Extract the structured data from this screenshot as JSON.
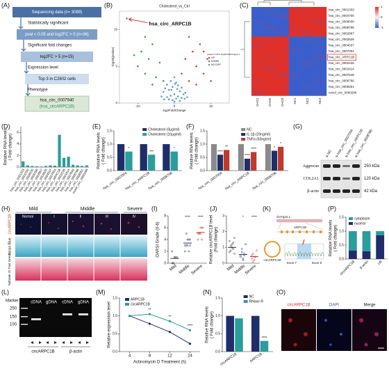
{
  "flowchart": {
    "label": "(A)",
    "steps": [
      "Sequencing data (n= 3089)",
      "pval < 0.05 and log2FC > 0 (n=36)",
      "log2FC > 5  (n=15)",
      "Top 3 in C28/I2 cells",
      "hsa_circ_0007940"
    ],
    "final_alias": "(hsa_circARPC1B)",
    "criteria": [
      "Statistically significant",
      "Significant fold changes",
      "Expression level",
      "Phenotype"
    ]
  },
  "western_blot": {
    "label": "(G)",
    "lanes": [
      "si NC",
      "si hsa_circ_0007004",
      "si hsa_circ_ARPC1B",
      "si hsa_circ_0008796"
    ],
    "proteins": [
      "Aggrecan",
      "COL2A1",
      "β-actin"
    ],
    "sizes": [
      "250 kDa",
      "120 kDa",
      "42 kDa"
    ]
  },
  "histology": {
    "label": "(H)",
    "groups": [
      "Mild",
      "Middle",
      "Severe"
    ],
    "grades": [
      "Normal",
      "I",
      "II",
      "III",
      "IV"
    ],
    "stains": [
      "CircARPC1B",
      "Alcian Blue",
      "Safranin O/ Fast Green"
    ]
  },
  "sequencing": {
    "label": "(K)",
    "texts": [
      "chr7q22.1",
      "ARPC1B",
      "Exon 7",
      "Exon 8",
      "circARPC1B"
    ]
  },
  "gel": {
    "label": "(L)",
    "marker": "Marker",
    "lanes": [
      "cDNA",
      "gDNA",
      "cDNA",
      "gDNA"
    ],
    "ladder": [
      "250",
      "150",
      "100"
    ],
    "targets": [
      "circARPC1B",
      "β-actin"
    ]
  },
  "fluorescence": {
    "label": "(O)",
    "channels": [
      "circARPC1B",
      "DAPI",
      "Merge"
    ]
  },
  "chart_data": [
    {
      "type": "scatter",
      "label": "(B)",
      "title": "Cholesterol_vs_Ctrl",
      "annotation": "hsa_circ_ARPC1B",
      "xlabel": "log2FoldChange",
      "ylabel": [
        "-log10(pvalue)"
      ],
      "xlim": [
        -15,
        15
      ],
      "ylim": [
        0,
        12.5
      ],
      "xticks": [
        -10,
        0,
        10
      ],
      "yticks": [
        0,
        5,
        10
      ],
      "legend_title": "pvalue<0.05 & |log2FoldChange|>1",
      "series": [
        {
          "name": "UP",
          "color": "#e0403a",
          "x": [
            2,
            3,
            4,
            5,
            6,
            7,
            8,
            9,
            10,
            4,
            6,
            8
          ],
          "y": [
            4,
            6,
            3,
            7,
            5,
            8,
            4,
            6,
            3,
            9,
            2.5,
            7
          ]
        },
        {
          "name": "DOWN",
          "color": "#2fa84f",
          "x": [
            -13,
            -10,
            -9,
            -8,
            -7,
            -6,
            -5,
            -4,
            -3,
            -11,
            -8,
            -6
          ],
          "y": [
            11.5,
            5,
            7,
            4,
            6,
            8,
            3.5,
            5.5,
            3,
            6.5,
            9,
            2.5
          ]
        },
        {
          "name": "NO DIFF",
          "color": "#5b9bd5",
          "x": [
            -3,
            -2.5,
            -2,
            -1.5,
            -1,
            -0.5,
            0,
            0.5,
            1,
            1.5,
            2,
            2.5,
            3,
            -2,
            -1,
            0,
            1,
            2,
            -1.5,
            -0.5,
            0.5,
            1.5,
            -0.8,
            0.8,
            0,
            -3.5,
            3.5,
            -2.8,
            2.8,
            0.2
          ],
          "y": [
            1.5,
            2,
            2.5,
            1.8,
            3,
            2.2,
            3.5,
            2.8,
            2.4,
            1.6,
            2.1,
            1.2,
            1.4,
            0.8,
            1,
            1.2,
            0.9,
            0.7,
            0.5,
            0.4,
            0.6,
            0.3,
            1.8,
            1.9,
            0.2,
            0.9,
            0.8,
            0.5,
            0.6,
            2.6
          ]
        }
      ]
    },
    {
      "type": "heatmap",
      "label": "(C)",
      "rows": [
        "hsa_circ_0001333",
        "hsa_circ_0004700",
        "hsa_circ_0008030",
        "hsa_circ_0008796",
        "hsa_circ_0002867",
        "hsa_circ_0002626",
        "hsa_circ_0004037",
        "hsa_circ_0007004",
        "hsa_circ_ARPC1B",
        "hsa_circ_0002226",
        "hsa_circ_0001614",
        "hsa_circ_0007648",
        "hsa_circ_0008796",
        "hsa_circ_0008261",
        "novel_circ_0000296"
      ],
      "columns": [
        "CHO1",
        "CHO2",
        "CHO3",
        "NC1",
        "NC2",
        "NC3"
      ],
      "highlight_row": 8,
      "colorbar_ticks": [
        1,
        0,
        -1
      ],
      "values": [
        [
          -1,
          -0.9,
          -1,
          0.9,
          1,
          1
        ],
        [
          -1,
          -1,
          -0.8,
          1,
          0.9,
          1
        ],
        [
          -0.9,
          -1,
          -1,
          1,
          1,
          0.8
        ],
        [
          -1,
          -0.8,
          -1,
          0.9,
          1,
          1
        ],
        [
          -1,
          -1,
          -0.9,
          1,
          0.8,
          1
        ],
        [
          1,
          0.9,
          1,
          -1,
          -0.9,
          -1
        ],
        [
          0.8,
          1,
          1,
          -1,
          -1,
          -0.9
        ],
        [
          1,
          1,
          0.9,
          -0.9,
          -1,
          -1
        ],
        [
          1,
          0.9,
          1,
          -1,
          -1,
          -0.8
        ],
        [
          0.9,
          1,
          1,
          -1,
          -0.8,
          -1
        ],
        [
          1,
          0.8,
          1,
          -1,
          -1,
          -1
        ],
        [
          1,
          1,
          0.8,
          -0.9,
          -1,
          -1
        ],
        [
          0.9,
          1,
          1,
          -1,
          -1,
          -0.9
        ],
        [
          1,
          1,
          0.9,
          -1,
          -0.9,
          -1
        ],
        [
          0.8,
          1,
          1,
          -1,
          -1,
          -0.9
        ]
      ]
    },
    {
      "type": "bar",
      "label": "(D)",
      "ylabel": [
        "Relative RNA levels",
        "( Fold change)"
      ],
      "color": "#2a9d9d",
      "categories": [
        "hsa_circ_0001333",
        "hsa_circ_0004700",
        "hsa_circ_0008030",
        "hsa_circ_0008796",
        "hsa_circ_0002867",
        "hsa_circ_0002626",
        "hsa_circ_0004037",
        "hsa_circ_0007004",
        "hsa_circ_ARPC1B",
        "hsa_circ_0002226",
        "hsa_circ_0001614",
        "hsa_circ_0007648",
        "hsa_circ_0008796",
        "hsa_circ_0008261",
        "novel_circ_0000296"
      ],
      "values": [
        1.0,
        0.3,
        0.2,
        0.15,
        0.1,
        0.2,
        0.3,
        0.25,
        5.6,
        1.6,
        1.8,
        0.4,
        0.3,
        0.2,
        0.3
      ],
      "ylim": [
        0,
        7
      ],
      "yticks": [
        0,
        2,
        4,
        6
      ]
    },
    {
      "type": "grouped",
      "label": "(E)",
      "ylabel": [
        "Relative RNA levels",
        "( Fold change)"
      ],
      "categories": [
        "hsa_circ_0007004",
        "hsa_circ_ARPC1B",
        "hsa_circ_0008796"
      ],
      "series": [
        {
          "name": "Cholesterol (0μg/ml)",
          "color": "#1f2d6b",
          "values": [
            1.0,
            1.0,
            1.0
          ],
          "significance": [
            null,
            null,
            null
          ]
        },
        {
          "name": "Cholesterol (10μg/ml)",
          "color": "#2a9d9d",
          "values": [
            0.72,
            0.6,
            0.72
          ],
          "significance": [
            "*",
            "***",
            "*"
          ]
        }
      ],
      "ylim": [
        0,
        1.5
      ],
      "yticks": [
        {
          "value": 0,
          "label": "0.0"
        },
        {
          "value": 0.5,
          "label": "0.5"
        },
        {
          "value": 1,
          "label": "1.0"
        },
        {
          "value": 1.5,
          "label": "1.5"
        }
      ]
    },
    {
      "type": "grouped",
      "label": "(F)",
      "ylabel": [
        "Relative RNA levels",
        "( Fold change)"
      ],
      "categories": [
        "hsa_circ_0007004",
        "hsa_circ_ARPC1B",
        "hsa_circ_0008796"
      ],
      "series": [
        {
          "name": "NC",
          "color": "#8a8a8a",
          "values": [
            1.0,
            1.0,
            1.0
          ],
          "significance": [
            null,
            null,
            null
          ]
        },
        {
          "name": "IL-1β (20ng/ml)",
          "color": "#1f2d6b",
          "values": [
            0.6,
            0.45,
            0.75
          ],
          "significance": [
            "****",
            "****",
            "*"
          ]
        },
        {
          "name": "TNFα (50ng/ml)",
          "color": "#c0392b",
          "values": [
            0.78,
            0.7,
            0.9
          ],
          "significance": [
            "**",
            "****",
            "*"
          ]
        }
      ],
      "ylim": [
        0,
        1.5
      ],
      "yticks": [
        {
          "value": 0,
          "label": "0.0"
        },
        {
          "value": 0.5,
          "label": "0.5"
        },
        {
          "value": 1,
          "label": "1.0"
        },
        {
          "value": 1.5,
          "label": "1.5"
        }
      ]
    },
    {
      "type": "dot",
      "label": "(I)",
      "ylabel": [
        "OARSI Grade (0-6)"
      ],
      "categories": [
        "Mild",
        "Middle",
        "Severe"
      ],
      "values": [
        0.8,
        3.4,
        5.2
      ],
      "points": [
        [
          0,
          0,
          1,
          1,
          1,
          2,
          0,
          1
        ],
        [
          2,
          3,
          3,
          4,
          4,
          3,
          5,
          4,
          2,
          3
        ],
        [
          4,
          5,
          5,
          6,
          6,
          5,
          5,
          6,
          4
        ]
      ],
      "significance": [
        null,
        "****",
        "****"
      ],
      "colors": [
        "#333333",
        "#1f2d6b",
        "#c0392b"
      ],
      "ylim": [
        0,
        8
      ],
      "yticks": [
        0,
        2,
        4,
        6,
        8
      ]
    },
    {
      "type": "dot",
      "label": "(J)",
      "ylabel": [
        "Relative circARPC1B level",
        "(Fold change)"
      ],
      "categories": [
        "Mild",
        "Middle",
        "Severe"
      ],
      "values": [
        1.0,
        0.55,
        0.42
      ],
      "points": [
        [
          1.4,
          0.8,
          1.2,
          0.9,
          1.6,
          0.7,
          1.1,
          1.0,
          1.3,
          0.6
        ],
        [
          0.5,
          0.9,
          0.3,
          0.6,
          1.2,
          0.4,
          0.7,
          0.2,
          0.5
        ],
        [
          0.3,
          0.6,
          0.2,
          0.4,
          0.8,
          0.5,
          0.1,
          0.4
        ]
      ],
      "significance": [
        null,
        "*",
        "****"
      ],
      "colors": [
        "#333333",
        "#1f2d6b",
        "#c0392b"
      ],
      "ylim": [
        0,
        3
      ],
      "yticks": [
        0,
        1,
        2,
        3
      ]
    },
    {
      "type": "stacked",
      "label": "(P)",
      "ylabel": [
        "Relative RNA levels",
        "( Fold change)"
      ],
      "categories": [
        "circARPC1B",
        "β-actin",
        "U6"
      ],
      "series": [
        {
          "name": "cytoplasm",
          "color": "#2a9d9d",
          "values": [
            0.7,
            0.72,
            0.15
          ]
        },
        {
          "name": "nuclear",
          "color": "#1f2d6b",
          "values": [
            0.3,
            0.28,
            0.85
          ]
        }
      ],
      "ylim": [
        0,
        1.5
      ],
      "yticks": [
        {
          "value": 0,
          "label": "0.0"
        },
        {
          "value": 0.5,
          "label": "0.5"
        },
        {
          "value": 1,
          "label": "1.0"
        },
        {
          "value": 1.5,
          "label": "1.5"
        }
      ]
    },
    {
      "type": "line",
      "label": "(M)",
      "ylabel": [
        "Relative expression level"
      ],
      "xlabel": "Actinomycin D Treatment (h)",
      "categories": [
        "4",
        "8",
        "12",
        "24"
      ],
      "series": [
        {
          "name": "ARPC1B",
          "color": "#1f2d6b",
          "values": [
            1.0,
            0.78,
            0.55,
            0.22
          ]
        },
        {
          "name": "circARPC1B",
          "color": "#2a9d9d",
          "values": [
            1.0,
            1.05,
            0.85,
            0.6
          ]
        }
      ],
      "significance": [
        null,
        "**",
        "**",
        "****"
      ],
      "ylim": [
        0,
        1.5
      ],
      "yticks": [
        {
          "value": 0,
          "label": "0.0"
        },
        {
          "value": 0.5,
          "label": "0.5"
        },
        {
          "value": 1,
          "label": "1.0"
        },
        {
          "value": 1.5,
          "label": "1.5"
        }
      ]
    },
    {
      "type": "grouped",
      "label": "(N)",
      "ylabel": [
        "Relative RNA levels",
        "( Fold change)"
      ],
      "categories": [
        "circARPC1B",
        "ARPC1B"
      ],
      "series": [
        {
          "name": "NC",
          "color": "#1f2d6b",
          "values": [
            1.0,
            1.0
          ],
          "significance": [
            null,
            null
          ]
        },
        {
          "name": "RNase R",
          "color": "#2a9d9d",
          "values": [
            0.93,
            0.3
          ],
          "significance": [
            null,
            "****"
          ]
        }
      ],
      "ylim": [
        0,
        1.5
      ],
      "yticks": [
        {
          "value": 0,
          "label": "0.0"
        },
        {
          "value": 0.5,
          "label": "0.5"
        },
        {
          "value": 1,
          "label": "1.0"
        },
        {
          "value": 1.5,
          "label": "1.5"
        }
      ]
    }
  ]
}
